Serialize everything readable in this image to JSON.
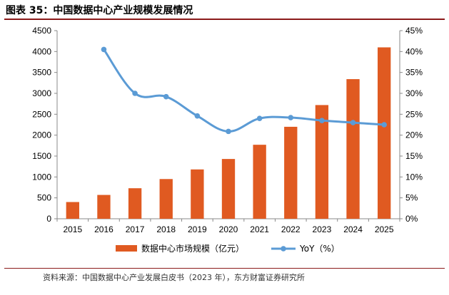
{
  "title": "图表 35：中国数据中心产业规模发展情况",
  "source": "资料来源：中国数据中心产业发展白皮书（2023 年），东方财富证券研究所",
  "colors": {
    "bar": "#e05a21",
    "line": "#5b9bd5",
    "rule": "#8b1a1a"
  },
  "chart_data": {
    "type": "bar+line",
    "categories": [
      "2015",
      "2016",
      "2017",
      "2018",
      "2019",
      "2020",
      "2021",
      "2022",
      "2023",
      "2024",
      "2025"
    ],
    "series": [
      {
        "name": "数据中心市场规模（亿元）",
        "type": "bar",
        "axis": "left",
        "values": [
          400,
          570,
          730,
          950,
          1180,
          1430,
          1770,
          2200,
          2720,
          3340,
          4100
        ]
      },
      {
        "name": "YoY（%）",
        "type": "line",
        "axis": "right",
        "values": [
          null,
          40.5,
          30.0,
          29.2,
          24.6,
          20.9,
          24.0,
          24.2,
          23.5,
          23.0,
          22.5
        ]
      }
    ],
    "y_left": {
      "min": 0,
      "max": 4500,
      "ticks": [
        "0",
        "500",
        "1000",
        "1500",
        "2000",
        "2500",
        "3000",
        "3500",
        "4000",
        "4500"
      ]
    },
    "y_right": {
      "min": 0,
      "max": 45,
      "ticks": [
        "0%",
        "5%",
        "10%",
        "15%",
        "20%",
        "25%",
        "30%",
        "35%",
        "40%",
        "45%"
      ]
    },
    "grid": false,
    "legend_position": "bottom"
  }
}
